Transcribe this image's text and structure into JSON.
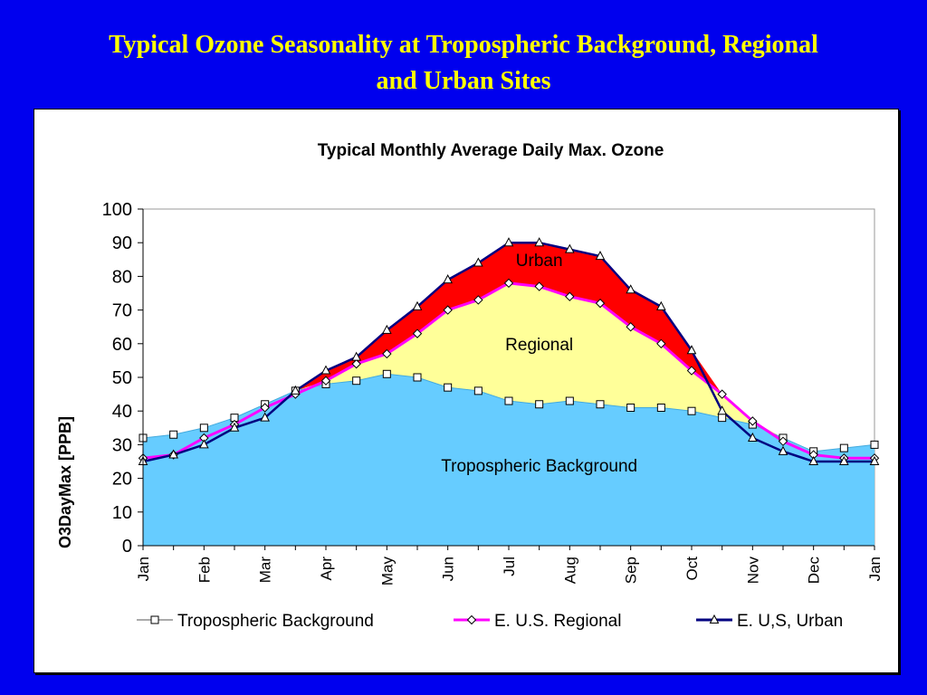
{
  "slide": {
    "title_line1": "Typical Ozone Seasonality at Tropospheric Background, Regional",
    "title_line2": "and Urban Sites"
  },
  "colors": {
    "slide_background": "#0000EE",
    "title": "#FFFF00",
    "background_fill": "#66CCFF",
    "regional_fill": "#FFFF99",
    "urban_fill": "#FF0000",
    "regional_line": "#FF00FF",
    "urban_line": "#000080"
  },
  "chart_data": {
    "type": "area",
    "title": "Typical Monthly Average Daily Max. Ozone",
    "ylabel": "O3DayMax [PPB]",
    "xlabel": "",
    "ylim": [
      0,
      100
    ],
    "yticks": [
      0,
      10,
      20,
      30,
      40,
      50,
      60,
      70,
      80,
      90,
      100
    ],
    "month_labels": [
      "Jan",
      "Feb",
      "Mar",
      "Apr",
      "May",
      "Jun",
      "Jul",
      "Aug",
      "Sep",
      "Oct",
      "Nov",
      "Dec",
      "Jan"
    ],
    "grid": false,
    "legend_position": "bottom",
    "area_labels": [
      "Urban",
      "Regional",
      "Tropospheric Background"
    ],
    "series": [
      {
        "name": "Tropospheric Background",
        "marker": "square",
        "values": [
          32,
          33,
          35,
          38,
          42,
          46,
          48,
          49,
          51,
          50,
          47,
          46,
          43,
          42,
          43,
          42,
          41,
          41,
          40,
          38,
          36,
          32,
          28,
          29,
          30
        ]
      },
      {
        "name": "E. U.S.  Regional",
        "marker": "diamond",
        "values": [
          26,
          27,
          32,
          36,
          41,
          45,
          49,
          54,
          57,
          63,
          70,
          73,
          78,
          77,
          74,
          72,
          65,
          60,
          52,
          45,
          37,
          31,
          27,
          26,
          26
        ]
      },
      {
        "name": "E. U,S, Urban",
        "marker": "triangle",
        "values": [
          25,
          27,
          30,
          35,
          38,
          46,
          52,
          56,
          64,
          71,
          79,
          84,
          90,
          90,
          88,
          86,
          76,
          71,
          58,
          40,
          32,
          28,
          25,
          25,
          25
        ]
      }
    ]
  }
}
